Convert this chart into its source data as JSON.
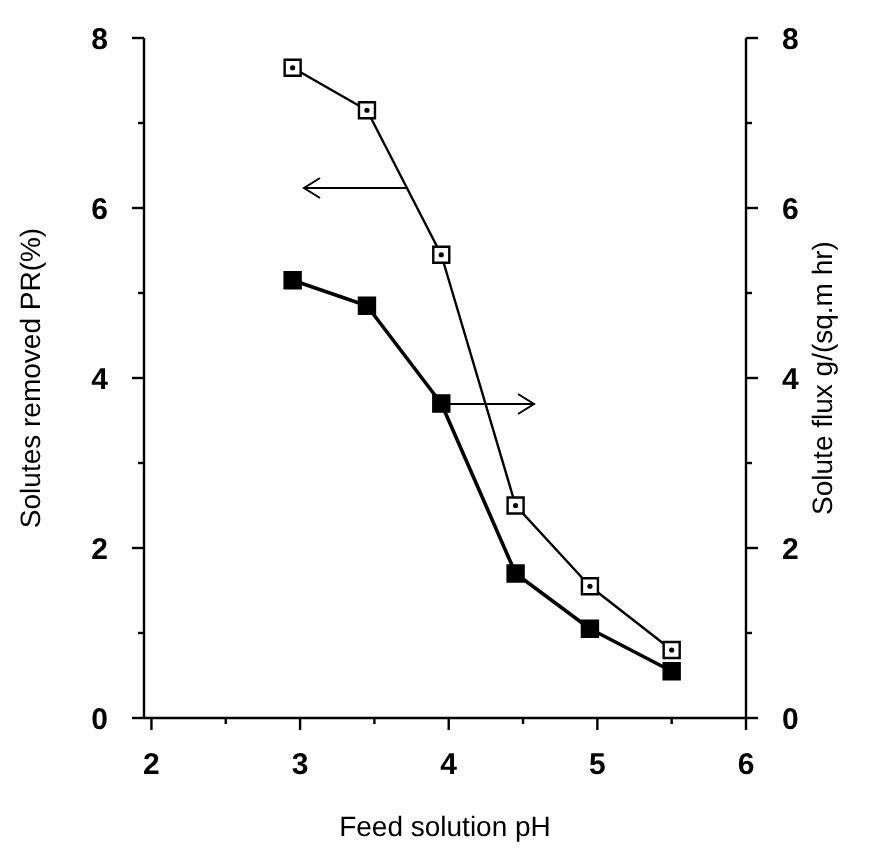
{
  "chart_data": {
    "type": "line",
    "xlabel": "Feed solution pH",
    "ylabel": "Solutes removed PR(%)",
    "y2label": "Solute flux g/(sq.m hr)",
    "xlim": [
      1.95,
      6
    ],
    "xticks": [
      2,
      {
        "value": 2.5,
        "label": null
      },
      3,
      {
        "value": 3.5,
        "label": null
      },
      4,
      {
        "value": 4.5,
        "label": null
      },
      5,
      {
        "value": 5.5,
        "label": null
      },
      6
    ],
    "ylim": [
      0,
      8
    ],
    "yticks": [
      0,
      {
        "value": 1,
        "label": null
      },
      2,
      {
        "value": 3,
        "label": null
      },
      4,
      {
        "value": 5,
        "label": null
      },
      6,
      {
        "value": 7,
        "label": null
      },
      8
    ],
    "y2lim": [
      0,
      8
    ],
    "y2ticks": [
      0,
      {
        "value": 1,
        "label": null
      },
      2,
      {
        "value": 3,
        "label": null
      },
      4,
      {
        "value": 5,
        "label": null
      },
      6,
      {
        "value": 7,
        "label": null
      },
      8
    ],
    "x": [
      2.95,
      3.45,
      3.95,
      4.45,
      4.95,
      5.5
    ],
    "marker": "square",
    "grid": false,
    "series": [
      {
        "color": "#000000",
        "values": [
          7.65,
          7.15,
          5.45,
          2.5,
          1.55,
          0.8
        ]
      },
      {
        "color": "#000000",
        "axis": "y2",
        "values": [
          5.15,
          4.85,
          3.7,
          1.7,
          1.05,
          0.55
        ]
      }
    ]
  }
}
